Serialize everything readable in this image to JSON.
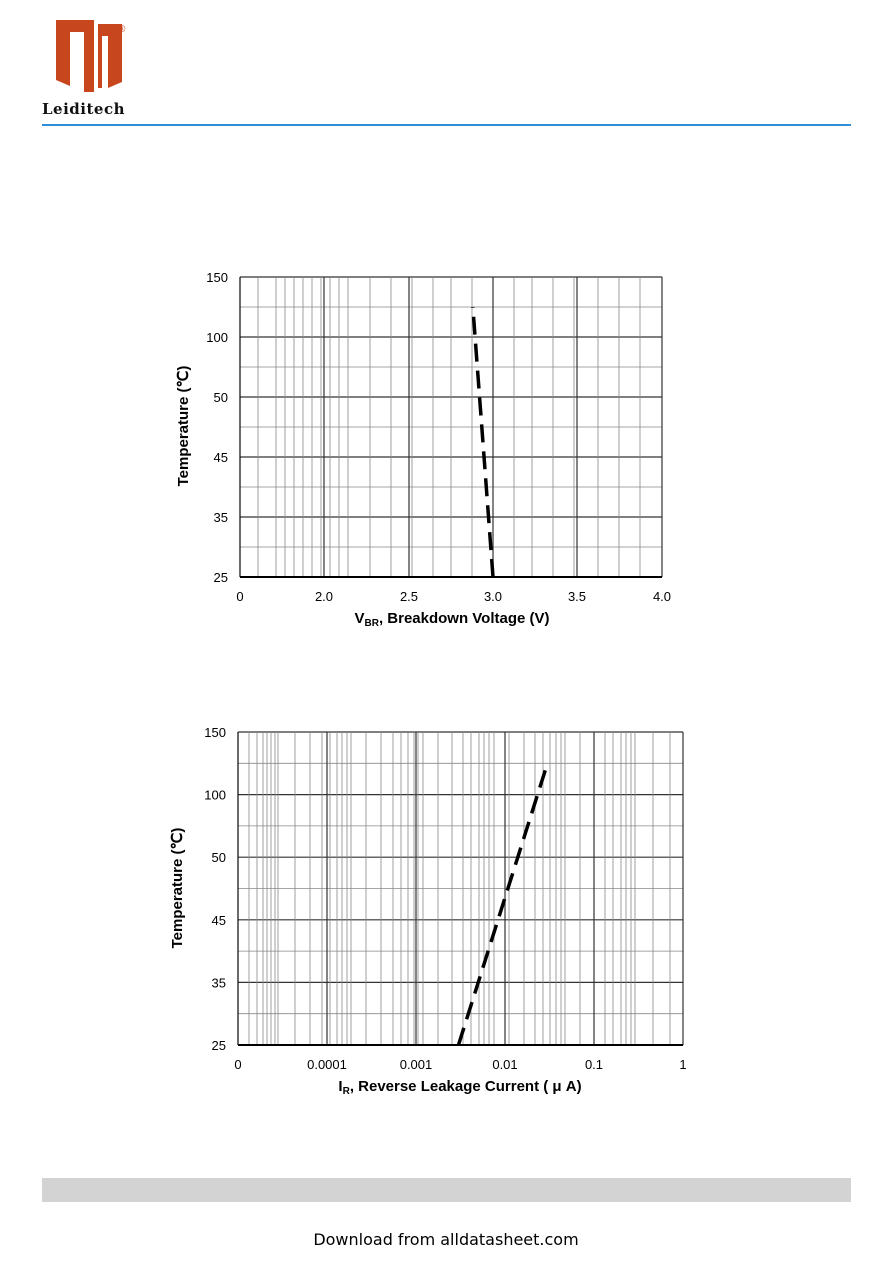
{
  "header": {
    "brand": "Leiditech",
    "registered_mark": "®",
    "logo_color": "#c8461e",
    "rule_color": "#2e8fd8"
  },
  "chart_data": [
    {
      "type": "line",
      "xlabel_main": "V",
      "xlabel_sub": "BR",
      "xlabel_rest": ", Breakdown Voltage (V)",
      "ylabel": "Temperature (℃)",
      "x_tick_labels": [
        "0",
        "2.0",
        "2.5",
        "3.0",
        "3.5",
        "4.0"
      ],
      "y_tick_labels": [
        "25",
        "35",
        "45",
        "50",
        "100",
        "150"
      ],
      "xlim": [
        0,
        4.0
      ],
      "series": [
        {
          "style": "dashed",
          "x": [
            3.0,
            2.88
          ],
          "y": [
            25,
            125
          ]
        }
      ],
      "grid": true
    },
    {
      "type": "line",
      "xlabel_main": "I",
      "xlabel_sub": "R",
      "xlabel_rest": ", Reverse Leakage Current ( μ A)",
      "ylabel": "Temperature (℃)",
      "x_tick_labels": [
        "0",
        "0.0001",
        "0.001",
        "0.01",
        "0.1",
        "1"
      ],
      "y_tick_labels": [
        "25",
        "35",
        "45",
        "50",
        "100",
        "150"
      ],
      "xlim": [
        0,
        1
      ],
      "series": [
        {
          "style": "dashed",
          "x": [
            0.003,
            0.03
          ],
          "y": [
            25,
            125
          ]
        }
      ],
      "grid": true
    }
  ],
  "footer": {
    "text": "Download from alldatasheet.com",
    "band_color": "#d3d3d3"
  }
}
